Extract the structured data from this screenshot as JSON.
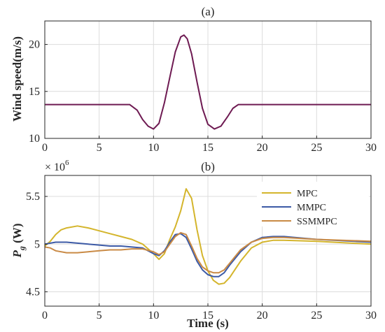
{
  "chart_data": [
    {
      "type": "line",
      "panel_label": "(a)",
      "xlabel": "",
      "ylabel": "Wind speed(m/s)",
      "xlim": [
        0,
        30
      ],
      "ylim": [
        10,
        22.5
      ],
      "xticks": [
        "0",
        "5",
        "10",
        "15",
        "20",
        "25",
        "30"
      ],
      "yticks": [
        "10",
        "15",
        "20"
      ],
      "ytick_values": [
        10,
        15,
        20
      ],
      "grid": true,
      "series": [
        {
          "color": "#6e1a52",
          "x": [
            0,
            7.8,
            8.5,
            9.0,
            9.5,
            10.0,
            10.5,
            11.0,
            11.5,
            12.0,
            12.5,
            12.8,
            13.1,
            13.5,
            14.0,
            14.5,
            15.0,
            15.6,
            16.2,
            16.8,
            17.3,
            17.8,
            30
          ],
          "y": [
            13.6,
            13.6,
            13.0,
            12.0,
            11.3,
            11.0,
            11.6,
            13.8,
            16.5,
            19.2,
            20.8,
            21.0,
            20.6,
            19.0,
            16.0,
            13.2,
            11.5,
            11.0,
            11.3,
            12.3,
            13.2,
            13.6,
            13.6
          ]
        }
      ]
    },
    {
      "type": "line",
      "panel_label": "(b)",
      "xlabel": "Time (s)",
      "ylabel": "P_g (W)",
      "ylabel_main": "P",
      "ylabel_sub": "g",
      "ylabel_unit": " (W)",
      "exponent_base": "× 10",
      "exponent_power": "6",
      "xlim": [
        0,
        30
      ],
      "ylim": [
        4.35,
        5.72
      ],
      "xticks": [
        "0",
        "5",
        "10",
        "15",
        "20",
        "25",
        "30"
      ],
      "yticks": [
        "4.5",
        "5",
        "5.5"
      ],
      "ytick_values": [
        4.5,
        5.0,
        5.5
      ],
      "grid": true,
      "legend_position": "top-right",
      "series": [
        {
          "name": "MPC",
          "color": "#d4b52c",
          "x": [
            0,
            0.5,
            1,
            1.5,
            2,
            3,
            4,
            5,
            6,
            7,
            8,
            9,
            10,
            10.5,
            11,
            11.5,
            12,
            12.5,
            13,
            13.5,
            14,
            14.5,
            15,
            15.5,
            16,
            16.5,
            17,
            18,
            19,
            20,
            21,
            22,
            25,
            30
          ],
          "y": [
            4.98,
            5.03,
            5.1,
            5.15,
            5.17,
            5.19,
            5.17,
            5.14,
            5.11,
            5.08,
            5.05,
            5.0,
            4.9,
            4.84,
            4.9,
            5.05,
            5.18,
            5.35,
            5.58,
            5.48,
            5.15,
            4.88,
            4.72,
            4.62,
            4.58,
            4.59,
            4.65,
            4.82,
            4.96,
            5.02,
            5.04,
            5.04,
            5.03,
            5.0
          ]
        },
        {
          "name": "MMPC",
          "color": "#3c5aa6",
          "x": [
            0,
            1,
            2,
            3,
            4,
            5,
            6,
            7,
            8,
            9,
            10,
            10.5,
            11,
            11.5,
            12,
            12.5,
            13,
            13.5,
            14,
            14.5,
            15,
            15.5,
            16,
            16.5,
            17,
            18,
            19,
            20,
            21,
            22,
            25,
            30
          ],
          "y": [
            5.0,
            5.02,
            5.02,
            5.01,
            5.0,
            4.99,
            4.98,
            4.98,
            4.97,
            4.96,
            4.9,
            4.88,
            4.93,
            5.02,
            5.1,
            5.11,
            5.07,
            4.95,
            4.82,
            4.73,
            4.68,
            4.66,
            4.66,
            4.7,
            4.78,
            4.92,
            5.02,
            5.07,
            5.08,
            5.08,
            5.05,
            5.02
          ]
        },
        {
          "name": "SSMMPC",
          "color": "#c98a45",
          "x": [
            0,
            0.5,
            1,
            2,
            3,
            4,
            5,
            6,
            7,
            8,
            9,
            10,
            10.5,
            11,
            11.5,
            12,
            12.5,
            13,
            13.5,
            14,
            14.5,
            15,
            15.5,
            16,
            16.5,
            17,
            18,
            19,
            20,
            21,
            22,
            25,
            30
          ],
          "y": [
            4.97,
            4.96,
            4.93,
            4.91,
            4.91,
            4.92,
            4.93,
            4.94,
            4.94,
            4.95,
            4.95,
            4.92,
            4.89,
            4.92,
            5.0,
            5.08,
            5.12,
            5.1,
            4.98,
            4.85,
            4.76,
            4.72,
            4.7,
            4.7,
            4.73,
            4.8,
            4.94,
            5.02,
            5.06,
            5.07,
            5.07,
            5.05,
            5.03
          ]
        }
      ]
    }
  ]
}
